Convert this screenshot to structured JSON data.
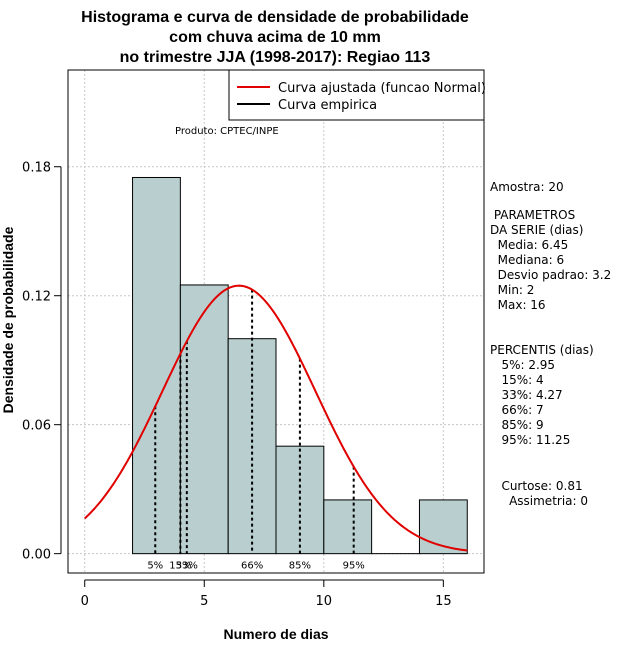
{
  "chart_data": {
    "type": "bar",
    "title_lines": [
      "Histograma e curva de densidade de probabilidade",
      "com chuva acima de 10 mm",
      "no trimestre JJA (1998-2017): Regiao 113"
    ],
    "xlabel": "Numero de dias",
    "ylabel": "Densidade de probabilidade",
    "xlim": [
      -0.7,
      16.7
    ],
    "ylim": [
      -0.009,
      0.225
    ],
    "x_ticks": [
      0,
      5,
      10,
      15
    ],
    "y_ticks": [
      0.0,
      0.06,
      0.12,
      0.18
    ],
    "y_tick_labels": [
      "0.00",
      "0.06",
      "0.12",
      "0.18"
    ],
    "grid": true,
    "bins": [
      {
        "x0": 2,
        "x1": 4,
        "density": 0.175
      },
      {
        "x0": 4,
        "x1": 6,
        "density": 0.125
      },
      {
        "x0": 6,
        "x1": 8,
        "density": 0.1
      },
      {
        "x0": 8,
        "x1": 10,
        "density": 0.05
      },
      {
        "x0": 10,
        "x1": 12,
        "density": 0.025
      },
      {
        "x0": 12,
        "x1": 14,
        "density": 0.0
      },
      {
        "x0": 14,
        "x1": 16,
        "density": 0.025
      }
    ],
    "fit_curve": {
      "name": "Curva ajustada (funcao Normal)",
      "mean": 6.45,
      "sd": 3.2,
      "x_range": [
        0,
        16
      ],
      "color": "#e00000"
    },
    "empirical_curve": {
      "name": "Curva empirica",
      "color": "#000000"
    },
    "percentiles": [
      {
        "label": "5%",
        "x": 2.95
      },
      {
        "label": "15%",
        "x": 4
      },
      {
        "label": "33%",
        "x": 4.27
      },
      {
        "label": "66%",
        "x": 7
      },
      {
        "label": "85%",
        "x": 9
      },
      {
        "label": "95%",
        "x": 11.25
      }
    ],
    "annotation": "Produto: CPTEC/INPE",
    "legend_position": "top-right",
    "bar_color": "#b9cfcf"
  },
  "stats": {
    "sample": "Amostra: 20",
    "params_title_1": " PARAMETROS",
    "params_title_2": "DA SERIE (dias)",
    "media": "  Media: 6.45",
    "mediana": "  Mediana: 6",
    "desvio": "  Desvio padrao: 3.2",
    "min": "  Min: 2",
    "max": "  Max: 16",
    "percentis_title": "PERCENTIS (dias)",
    "p5": "   5%: 2.95",
    "p15": "   15%: 4",
    "p33": "   33%: 4.27",
    "p66": "   66%: 7",
    "p85": "   85%: 9",
    "p95": "   95%: 11.25",
    "curtose": "   Curtose: 0.81",
    "assimetria": "     Assimetria: 0"
  }
}
